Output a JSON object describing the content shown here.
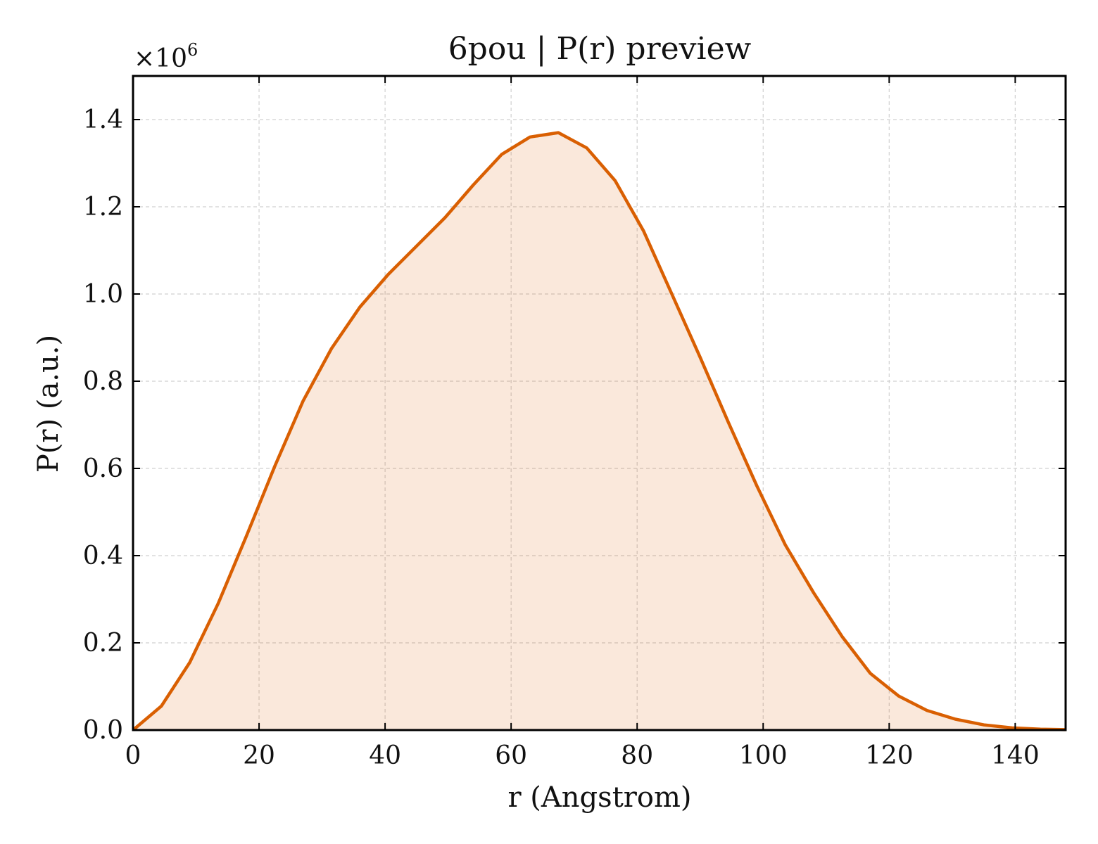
{
  "chart_data": {
    "type": "area",
    "title": "6pou | P(r) preview",
    "xlabel": "r (Angstrom)",
    "ylabel": "P(r) (a.u.)",
    "y_multiplier_label": "×10",
    "y_multiplier_exponent": "6",
    "xlim": [
      0,
      148
    ],
    "ylim": [
      0,
      1.5
    ],
    "xticks": [
      0,
      20,
      40,
      60,
      80,
      100,
      120,
      140
    ],
    "yticks": [
      0.0,
      0.2,
      0.4,
      0.6,
      0.8,
      1.0,
      1.2,
      1.4
    ],
    "grid": true,
    "colors": {
      "line": "#d95f02",
      "fill": "#d95f02"
    },
    "series": [
      {
        "x": [
          0,
          4.5,
          9,
          13.5,
          18,
          22.5,
          27,
          31.5,
          36,
          40.5,
          45,
          49.5,
          54,
          58.5,
          63,
          67.5,
          72,
          76.5,
          81,
          85.5,
          90,
          94.5,
          99,
          103.5,
          108,
          112.5,
          117,
          121.5,
          126,
          130.5,
          135,
          139.5,
          144,
          148
        ],
        "y": [
          0.0,
          0.055,
          0.155,
          0.29,
          0.445,
          0.605,
          0.755,
          0.875,
          0.97,
          1.045,
          1.11,
          1.175,
          1.25,
          1.32,
          1.36,
          1.37,
          1.335,
          1.26,
          1.145,
          1.0,
          0.855,
          0.705,
          0.56,
          0.425,
          0.315,
          0.215,
          0.13,
          0.078,
          0.045,
          0.025,
          0.012,
          0.005,
          0.002,
          0.001
        ]
      }
    ]
  }
}
